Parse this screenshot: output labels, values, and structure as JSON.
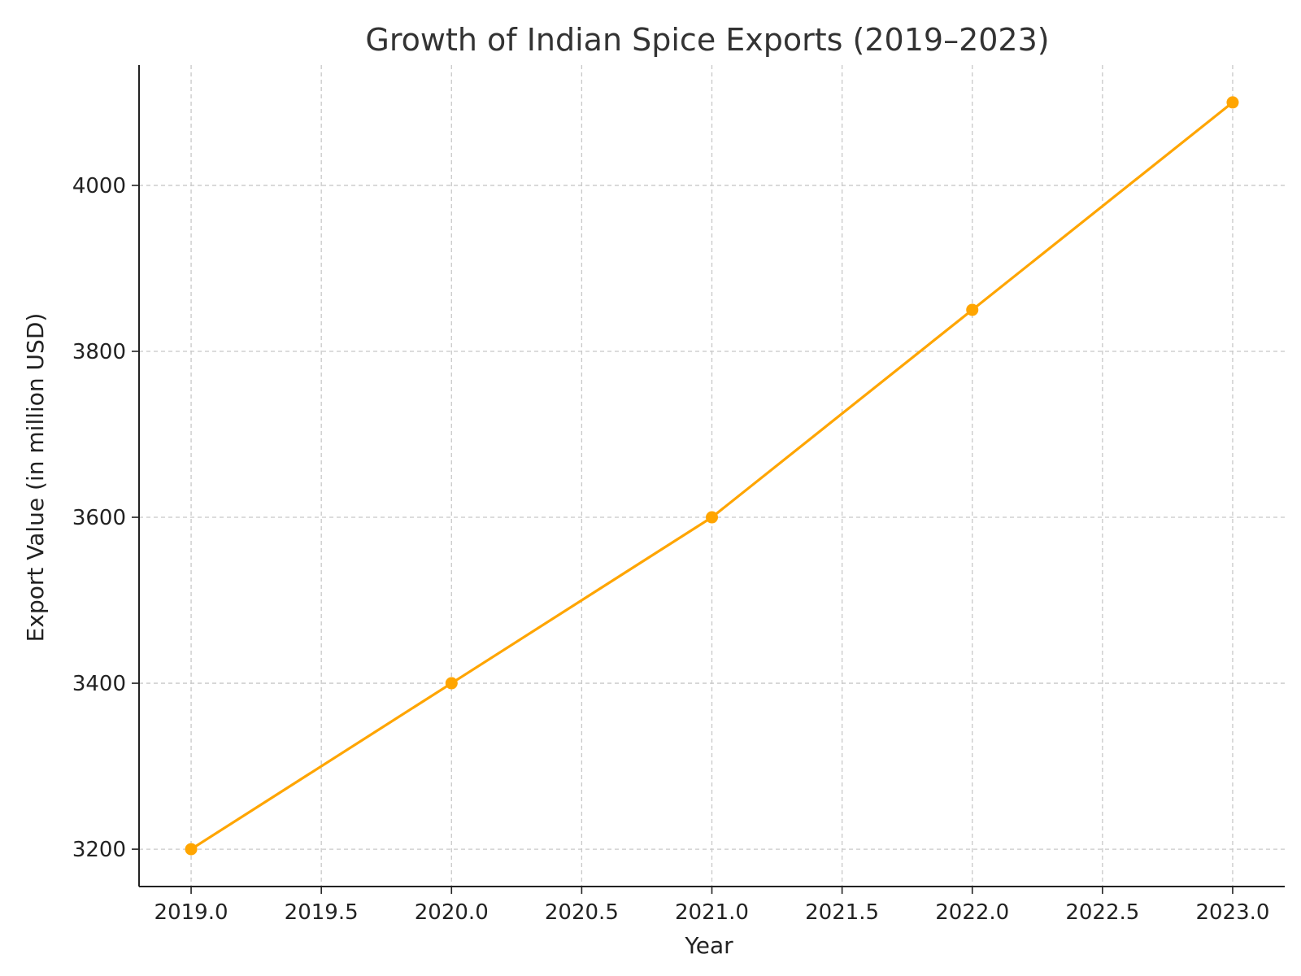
{
  "chart_data": {
    "type": "line",
    "title": "Growth of Indian Spice Exports (2019–2023)",
    "xlabel": "Year",
    "ylabel": "Export Value (in million USD)",
    "x": [
      2019,
      2020,
      2021,
      2022,
      2023
    ],
    "series": [
      {
        "values": [
          3200,
          3400,
          3600,
          3850,
          4100
        ],
        "color": "#FFA500"
      }
    ],
    "xlim": [
      2018.8,
      2023.2
    ],
    "ylim": [
      3155,
      4145
    ],
    "xticks": [
      2019.0,
      2019.5,
      2020.0,
      2020.5,
      2021.0,
      2021.5,
      2022.0,
      2022.5,
      2023.0
    ],
    "xtick_labels": [
      "2019.0",
      "2019.5",
      "2020.0",
      "2020.5",
      "2021.0",
      "2021.5",
      "2022.0",
      "2022.5",
      "2023.0"
    ],
    "yticks": [
      3200,
      3400,
      3600,
      3800,
      4000
    ],
    "ytick_labels": [
      "3200",
      "3400",
      "3600",
      "3800",
      "4000"
    ],
    "grid": true,
    "marker": "circle"
  }
}
